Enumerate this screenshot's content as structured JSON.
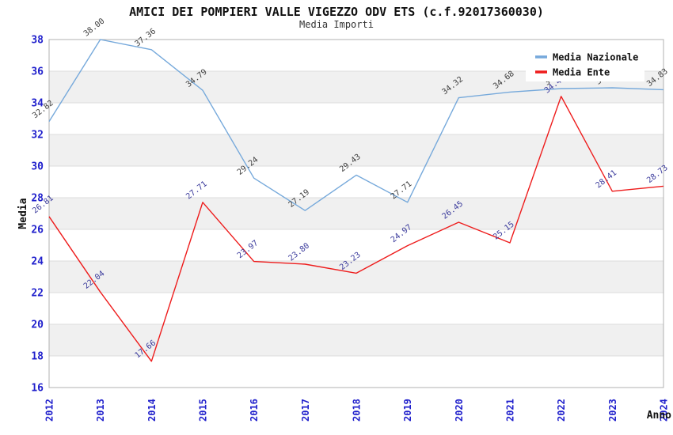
{
  "title": "AMICI DEI POMPIERI VALLE VIGEZZO ODV ETS (c.f.92017360030)",
  "subtitle": "Media Importi",
  "y_axis_title": "Media",
  "x_axis_title": "Anno",
  "legend": {
    "items": [
      {
        "label": "Media Nazionale",
        "color": "#76a9db"
      },
      {
        "label": "Media Ente",
        "color": "#ee1c1c"
      }
    ]
  },
  "colors": {
    "tick_label": "#2020cc",
    "axis_title": "#111111",
    "grid_line": "#dcdcdc",
    "band_fill": "#f0f0f0",
    "plot_border": "#b0b0b0",
    "legend_bg": "#ffffff"
  },
  "chart_data": {
    "type": "line",
    "x": [
      2012,
      2013,
      2014,
      2015,
      2016,
      2017,
      2018,
      2019,
      2020,
      2021,
      2022,
      2023,
      2024
    ],
    "x_tick_labels": [
      "2012",
      "2013",
      "2014",
      "2015",
      "2016",
      "2017",
      "2018",
      "2019",
      "2020",
      "2021",
      "2022",
      "2023",
      "2024"
    ],
    "ylim": [
      16,
      38
    ],
    "y_tick_step": 2,
    "y_tick_labels": [
      "16",
      "18",
      "20",
      "22",
      "24",
      "26",
      "28",
      "30",
      "32",
      "34",
      "36",
      "38"
    ],
    "grid": "horizontal gridlines with alternating gray bands",
    "legend_position": "top-right-inside",
    "series": [
      {
        "name": "Media Nazionale",
        "color": "#76a9db",
        "label_color": "#3c3c3c",
        "values": [
          32.82,
          38.0,
          37.36,
          34.79,
          29.24,
          27.19,
          29.43,
          27.71,
          34.32,
          34.68,
          34.9,
          34.95,
          34.83
        ],
        "note_hidden_labels": "2022 and 2023 labels are covered by the legend box"
      },
      {
        "name": "Media Ente",
        "color": "#ee1c1c",
        "label_color": "#39399b",
        "values": [
          26.81,
          22.04,
          17.66,
          27.71,
          23.97,
          23.8,
          23.23,
          24.97,
          26.45,
          25.15,
          34.41,
          28.41,
          28.73
        ],
        "note_hidden_labels": "2022 label partially covered by the legend box"
      }
    ]
  }
}
